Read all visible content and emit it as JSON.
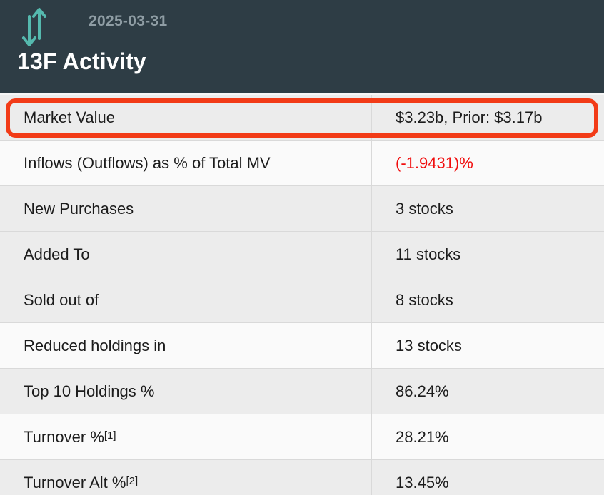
{
  "header": {
    "date": "2025-03-31",
    "title": "13F Activity",
    "icon": "up-down-arrows-icon"
  },
  "colors": {
    "header_bg": "#2e3d45",
    "date_text": "#8f9da4",
    "icon_teal": "#55b9ae",
    "row_gray": "#ececec",
    "row_white": "#fafafa",
    "divider": "#d9d9d9",
    "text": "#1c1c1c",
    "negative": "#f10e0e",
    "highlight_border": "#f23b17"
  },
  "table": {
    "rows": [
      {
        "label": "Market Value",
        "value": "$3.23b, Prior: $3.17b",
        "shade": "gray",
        "highlighted": true
      },
      {
        "label": "Inflows (Outflows) as % of Total MV",
        "value": "(-1.9431)%",
        "shade": "white",
        "negative": true
      },
      {
        "label": "New Purchases",
        "value": "3 stocks",
        "shade": "gray"
      },
      {
        "label": "Added To",
        "value": "11 stocks",
        "shade": "gray"
      },
      {
        "label": "Sold out of",
        "value": "8 stocks",
        "shade": "gray"
      },
      {
        "label": "Reduced holdings in",
        "value": "13 stocks",
        "shade": "white"
      },
      {
        "label": "Top 10 Holdings %",
        "value": "86.24%",
        "shade": "gray"
      },
      {
        "label": "Turnover %",
        "label_sup": "[1]",
        "value": "28.21%",
        "shade": "white"
      },
      {
        "label": "Turnover Alt %",
        "label_sup": "[2]",
        "value": "13.45%",
        "shade": "gray"
      }
    ]
  }
}
